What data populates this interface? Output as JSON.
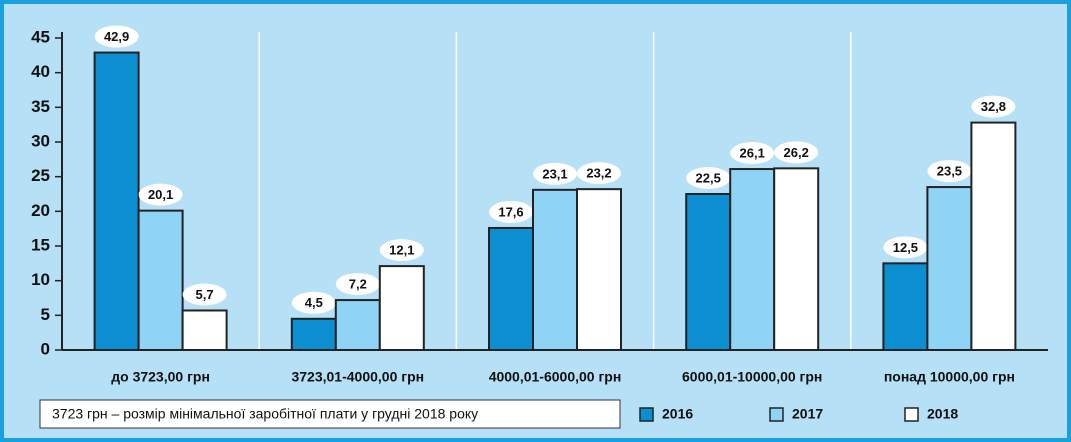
{
  "chart_data": {
    "type": "bar",
    "categories": [
      "до 3723,00 грн",
      "3723,01-4000,00 грн",
      "4000,01-6000,00 грн",
      "6000,01-10000,00 грн",
      "понад 10000,00 грн"
    ],
    "series": [
      {
        "name": "2016",
        "color": "#0b8fd1",
        "values": [
          42.9,
          4.5,
          17.6,
          22.5,
          12.5
        ],
        "value_labels": [
          "42,9",
          "4,5",
          "17,6",
          "22,5",
          "12,5"
        ]
      },
      {
        "name": "2017",
        "color": "#8fd4f4",
        "values": [
          20.1,
          7.2,
          23.1,
          26.1,
          23.5
        ],
        "value_labels": [
          "20,1",
          "7,2",
          "23,1",
          "26,1",
          "23,5"
        ]
      },
      {
        "name": "2018",
        "color": "#ffffff",
        "values": [
          5.7,
          12.1,
          23.2,
          26.2,
          32.8
        ],
        "value_labels": [
          "5,7",
          "12,1",
          "23,2",
          "26,2",
          "32,8"
        ]
      }
    ],
    "ylim": [
      0,
      45
    ],
    "yticks": [
      0,
      5,
      10,
      15,
      20,
      25,
      30,
      35,
      40,
      45
    ],
    "note": "3723 грн – розмір мінімальної заробітної плати у грудні 2018 року",
    "legend": "bottom"
  }
}
